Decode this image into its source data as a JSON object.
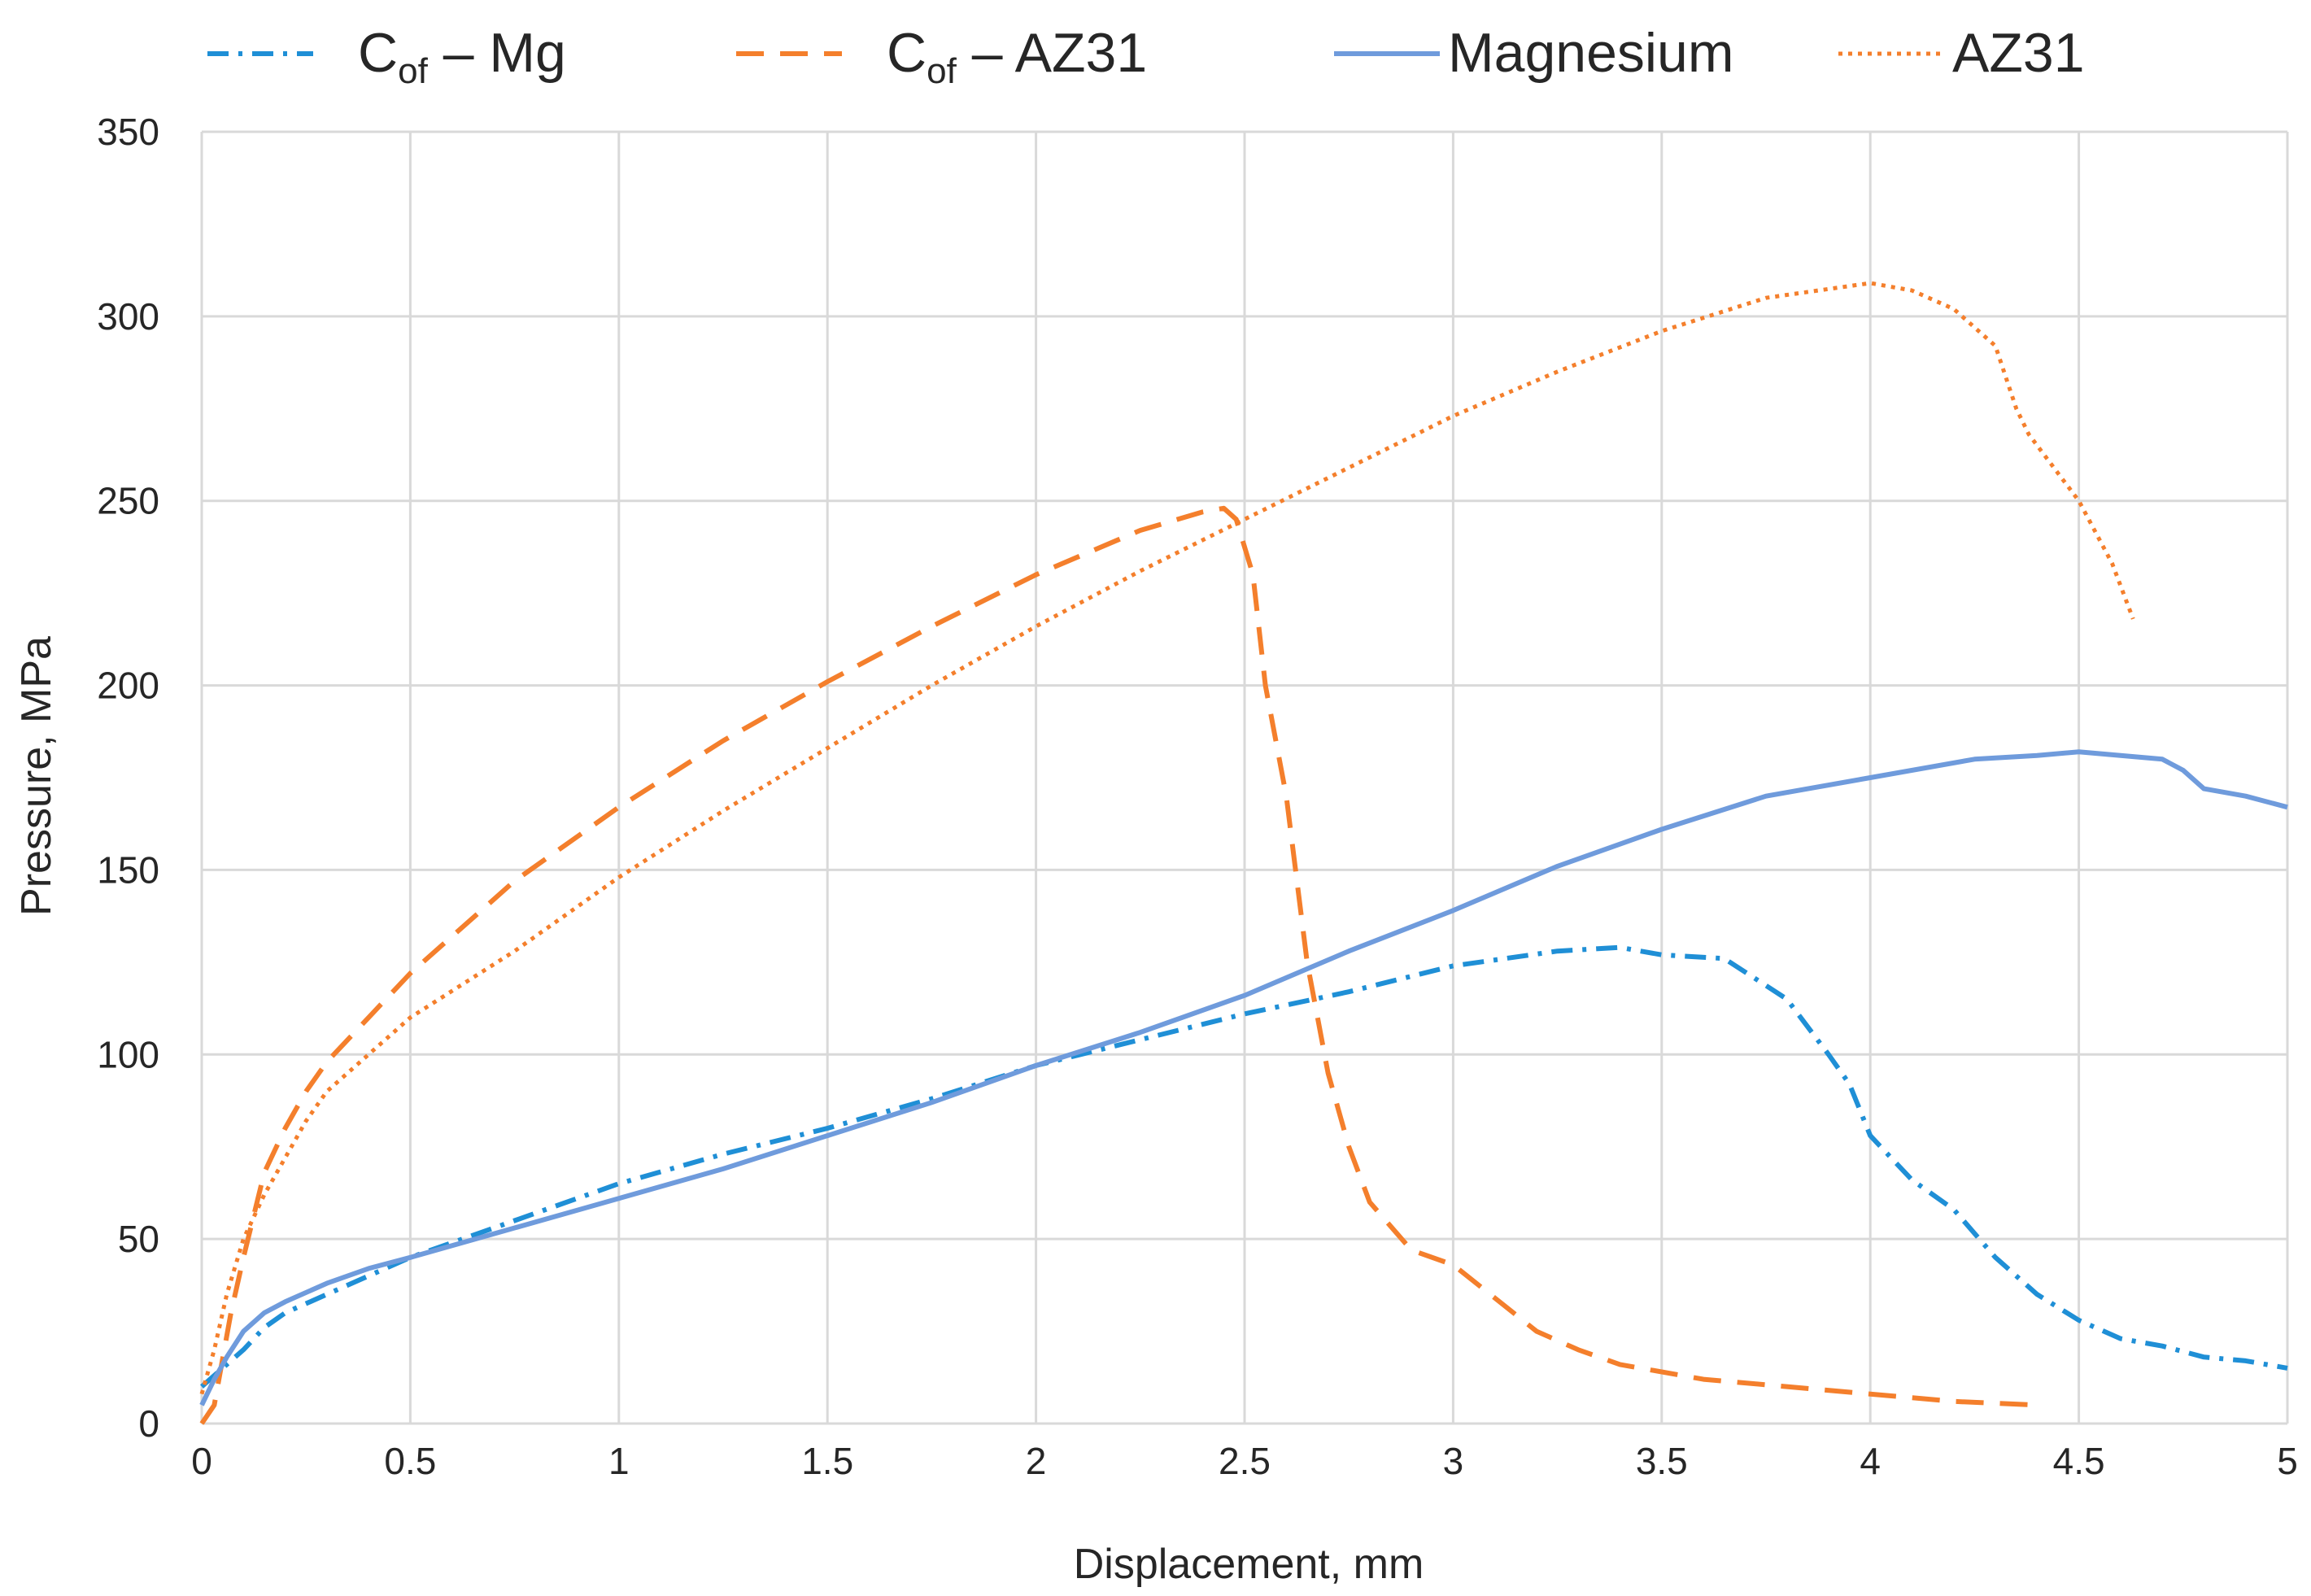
{
  "chart_data": {
    "type": "line",
    "title": "",
    "xlabel": "Displacement, mm",
    "ylabel": "Pressure, MPa",
    "xlim": [
      0,
      5
    ],
    "ylim": [
      0,
      350
    ],
    "xticks": [
      "0",
      "0.5",
      "1",
      "1.5",
      "2",
      "2.5",
      "3",
      "3.5",
      "4",
      "4.5",
      "5"
    ],
    "yticks": [
      "0",
      "50",
      "100",
      "150",
      "200",
      "250",
      "300",
      "350"
    ],
    "grid": true,
    "legend_position": "top",
    "legend": [
      {
        "key": "cof_mg",
        "prefix": "C",
        "sub": "of",
        "suffix": " – Mg"
      },
      {
        "key": "cof_az31",
        "prefix": "C",
        "sub": "of",
        "suffix": " – AZ31"
      },
      {
        "key": "magnesium",
        "prefix": "Magnesium",
        "sub": "",
        "suffix": ""
      },
      {
        "key": "az31",
        "prefix": "AZ31",
        "sub": "",
        "suffix": ""
      }
    ],
    "series": [
      {
        "key": "cof_mg",
        "name": "Cof – Mg",
        "color": "#1f8fd6",
        "style": "dashdot",
        "x": [
          0,
          0.05,
          0.1,
          0.15,
          0.2,
          0.3,
          0.4,
          0.5,
          0.75,
          1,
          1.25,
          1.5,
          1.75,
          2,
          2.25,
          2.5,
          2.75,
          3,
          3.25,
          3.4,
          3.5,
          3.65,
          3.8,
          3.9,
          3.95,
          4,
          4.1,
          4.2,
          4.3,
          4.4,
          4.5,
          4.6,
          4.7,
          4.8,
          4.9,
          5
        ],
        "y": [
          10,
          15,
          20,
          26,
          30,
          35,
          40,
          45,
          55,
          65,
          73,
          80,
          88,
          97,
          104,
          111,
          117,
          124,
          128,
          129,
          127,
          126,
          115,
          100,
          92,
          78,
          66,
          58,
          45,
          35,
          28,
          23,
          21,
          18,
          17,
          15
        ]
      },
      {
        "key": "cof_az31",
        "name": "Cof – AZ31",
        "color": "#f47f2c",
        "style": "dashed",
        "x": [
          0,
          0.03,
          0.07,
          0.1,
          0.15,
          0.2,
          0.25,
          0.3,
          0.4,
          0.5,
          0.6,
          0.75,
          1,
          1.25,
          1.5,
          1.75,
          2,
          2.25,
          2.4,
          2.45,
          2.48,
          2.52,
          2.55,
          2.6,
          2.65,
          2.7,
          2.75,
          2.8,
          2.9,
          3,
          3.1,
          3.2,
          3.3,
          3.4,
          3.6,
          3.8,
          4,
          4.2,
          4.4
        ],
        "y": [
          0,
          5,
          30,
          45,
          68,
          80,
          90,
          98,
          110,
          122,
          132,
          147,
          167,
          185,
          201,
          216,
          230,
          242,
          247,
          248,
          245,
          230,
          200,
          170,
          125,
          95,
          75,
          60,
          47,
          43,
          34,
          25,
          20,
          16,
          12,
          10,
          8,
          6,
          5
        ]
      },
      {
        "key": "magnesium",
        "name": "Magnesium",
        "color": "#6f9bdc",
        "style": "solid",
        "x": [
          0,
          0.03,
          0.06,
          0.1,
          0.15,
          0.2,
          0.3,
          0.4,
          0.5,
          0.75,
          1,
          1.25,
          1.5,
          1.75,
          2,
          2.25,
          2.5,
          2.75,
          3,
          3.25,
          3.5,
          3.75,
          4,
          4.25,
          4.4,
          4.5,
          4.6,
          4.7,
          4.75,
          4.8,
          4.9,
          5
        ],
        "y": [
          5,
          12,
          18,
          25,
          30,
          33,
          38,
          42,
          45,
          53,
          61,
          69,
          78,
          87,
          97,
          106,
          116,
          128,
          139,
          151,
          161,
          170,
          175,
          180,
          181,
          182,
          181,
          180,
          177,
          172,
          170,
          167
        ]
      },
      {
        "key": "az31",
        "name": "AZ31",
        "color": "#f47f2c",
        "style": "dotted",
        "x": [
          0,
          0.03,
          0.06,
          0.1,
          0.15,
          0.2,
          0.25,
          0.3,
          0.4,
          0.5,
          0.75,
          1,
          1.25,
          1.5,
          1.75,
          2,
          2.25,
          2.5,
          2.75,
          3,
          3.25,
          3.5,
          3.75,
          4,
          4.1,
          4.2,
          4.3,
          4.35,
          4.38,
          4.42,
          4.5,
          4.58,
          4.63
        ],
        "y": [
          8,
          20,
          35,
          50,
          62,
          72,
          82,
          90,
          100,
          110,
          128,
          148,
          166,
          183,
          200,
          216,
          231,
          245,
          259,
          273,
          285,
          296,
          305,
          309,
          307,
          302,
          292,
          275,
          268,
          262,
          250,
          233,
          218
        ]
      }
    ]
  }
}
